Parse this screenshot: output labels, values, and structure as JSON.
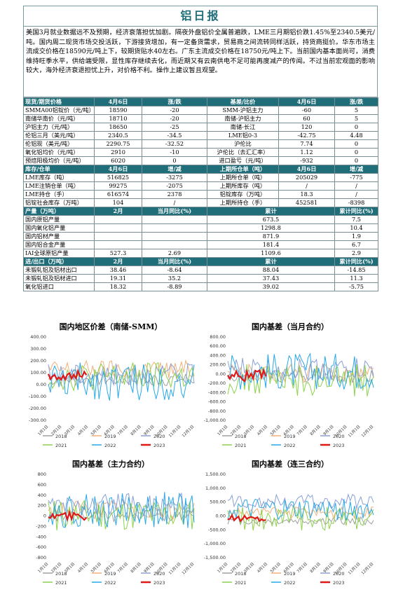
{
  "title": "铝日报",
  "summary": "美国3月就业数据远不及预期，经济衰落担忧加剧。隔夜外盘铝价全属普遍跌，LME三月期铝价跌1.45%至2340.5美元/吨。国内周二现货市场交投活跃，下游接货增加，有一定备货需求，贸易商之间流转同样活跃，持货商挺价。华东市场主流成交价格在18590元/吨上下，较期货贴水40左右。广东主流成交价格在18750元/吨上下。当前国内基本面尚可，消费维持旺季水平，供给端受限，显性库存继续去化，而近期又有云南供电不足可能再度减产的传闻。不过当前宏观面的影响较大，海外经济衰退担忧上升，对价格不利。操作上建议暂且观望。",
  "sections": [
    {
      "header": [
        "现货/期货价格",
        "4月6日",
        "涨/跌",
        "基差/比价",
        "4月6日",
        "涨/跌"
      ],
      "rows": [
        [
          "SMMA00铝锭价（元/吨）",
          "18590",
          "-20",
          "SMM-沪铝主力",
          "-60",
          "5"
        ],
        [
          "南储华南价（元/吨）",
          "18710",
          "-20",
          "南储-沪铝主力",
          "60",
          "5"
        ],
        [
          "沪铝主力（元/吨）",
          "18650",
          "-25",
          "南储-长江",
          "120",
          "0"
        ],
        [
          "伦铝三月（美元/吨）",
          "2340.5",
          "-34.5",
          "LME铝0-3",
          "-42.75",
          "4.48"
        ],
        [
          "伦铝现（美元/吨）",
          "2290.75",
          "-32.52",
          "沪伦比",
          "7.74",
          "0"
        ],
        [
          "氧化铝均价（元/吨）",
          "2910",
          "-10",
          "沪伦比（去汇汇率）",
          "1.12",
          "0"
        ],
        [
          "预焙阳极均价（元/吨）",
          "6020",
          "0",
          "进口盈亏（元/吨）",
          "-932",
          "0"
        ]
      ]
    },
    {
      "header": [
        "库存/仓单",
        "4月6日",
        "增/减",
        "上期所仓单（吨）",
        "4月6日",
        "增/减"
      ],
      "rows": [
        [
          "LME库存（吨）",
          "516825",
          "-3275",
          "上期所仓单（吨）",
          "205029",
          "-775"
        ],
        [
          "LME注销仓单（吨）",
          "99275",
          "-2075",
          "上期所库存（吨）",
          "/",
          "/"
        ],
        [
          "LME持仓（手）",
          "616574",
          "2378",
          "铝锭库存（万吨）",
          "18.3",
          "/"
        ],
        [
          "铝锭社会库存（万吨）",
          "104",
          "/",
          "上期所持仓（手）",
          "452581",
          "-8398"
        ]
      ]
    },
    {
      "header": [
        "产量（万吨）",
        "2月",
        "当月同比(%)",
        "累计",
        "累计同比(%)"
      ],
      "rows": [
        [
          "国内原铝产量",
          "",
          "",
          "673.5",
          "7.5"
        ],
        [
          "国内氧化铝产量",
          "",
          "",
          "1298.8",
          "10.4"
        ],
        [
          "国内铝材产量",
          "",
          "",
          "871.9",
          "1.9"
        ],
        [
          "国内铝合金产量",
          "",
          "",
          "181.4",
          "6.7"
        ],
        [
          "IAI全球原铝产量",
          "527.3",
          "2.69",
          "1109.6",
          "2.9"
        ]
      ]
    },
    {
      "header": [
        "进/出口（万吨）",
        "2月",
        "当月同比(%)",
        "累计",
        "累计同比(%)"
      ],
      "rows": [
        [
          "未锻轧铝及铝材出口",
          "38.46",
          "-8.64",
          "88.04",
          "-14.85"
        ],
        [
          "未锻轧铝及铝材进口",
          "19.31",
          "35.2",
          "37.43",
          "11.3"
        ],
        [
          "氧化铝进口",
          "18.32",
          "-8.89",
          "39.02",
          "-5.75"
        ]
      ]
    }
  ],
  "chart_data": [
    {
      "type": "line",
      "title": "国内地区价差（南储-SMM）",
      "yticks": [
        "400.00",
        "300.00",
        "200.00",
        "100.00",
        "0.00",
        "-100.00",
        "-200.00",
        "-300.00"
      ],
      "ylim": [
        -300,
        400
      ],
      "xticks": [
        "1月1日",
        "2月1日",
        "3月1日",
        "4月1日",
        "5月1日",
        "6月1日",
        "7月1日",
        "8月1日",
        "9月1日",
        "10月1日",
        "11月1日",
        "12月1日"
      ],
      "series": [
        {
          "name": "2018",
          "color": "#a0a0a0",
          "level": 40,
          "amp": 60
        },
        {
          "name": "2019",
          "color": "#f0b078",
          "level": 120,
          "amp": 80
        },
        {
          "name": "2020",
          "color": "#8aa0d8",
          "level": 80,
          "amp": 90
        },
        {
          "name": "2021",
          "color": "#8dd24a",
          "level": 60,
          "amp": 120
        },
        {
          "name": "2022",
          "color": "#28a8e8",
          "level": 20,
          "amp": 160
        },
        {
          "name": "2023",
          "color": "#e01818",
          "level": 70,
          "amp": 40,
          "partial": 0.27
        }
      ]
    },
    {
      "type": "line",
      "title": "国内基差（当月合约）",
      "yticks": [
        "800.00",
        "600.00",
        "400.00",
        "200.00",
        "0.00",
        "-200.00",
        "-400.00",
        "-600.00",
        "-800.00",
        "-1,000.00"
      ],
      "ylim": [
        -1000,
        800
      ],
      "xticks": [
        "1月1日",
        "2月1日",
        "3月1日",
        "4月1日",
        "5月1日",
        "6月1日",
        "7月1日",
        "8月1日",
        "9月1日",
        "10月1日",
        "11月1日",
        "12月1日"
      ],
      "series": [
        {
          "name": "2018",
          "color": "#a0a0a0",
          "level": -50,
          "amp": 150
        },
        {
          "name": "2019",
          "color": "#f0b078",
          "level": 0,
          "amp": 200
        },
        {
          "name": "2020",
          "color": "#8aa0d8",
          "level": 100,
          "amp": 250
        },
        {
          "name": "2021",
          "color": "#8dd24a",
          "level": -150,
          "amp": 350
        },
        {
          "name": "2022",
          "color": "#28a8e8",
          "level": 50,
          "amp": 400
        },
        {
          "name": "2023",
          "color": "#e01818",
          "level": -50,
          "amp": 120,
          "partial": 0.27
        }
      ]
    },
    {
      "type": "line",
      "title": "国内基差（主力合约）",
      "yticks": [
        "800",
        "600",
        "400",
        "200",
        "0",
        "-200",
        "-400",
        "-600",
        "-800"
      ],
      "ylim": [
        -800,
        800
      ],
      "xticks": [
        "1月1日",
        "2月1日",
        "3月1日",
        "4月1日",
        "5月1日",
        "6月1日",
        "7月1日",
        "8月1日",
        "9月1日",
        "10月1日",
        "11月1日",
        "12月1日"
      ],
      "series": [
        {
          "name": "2018",
          "color": "#a0a0a0",
          "level": 0,
          "amp": 120
        },
        {
          "name": "2019",
          "color": "#f0b078",
          "level": 100,
          "amp": 180
        },
        {
          "name": "2020",
          "color": "#8aa0d8",
          "level": 200,
          "amp": 220
        },
        {
          "name": "2021",
          "color": "#8dd24a",
          "level": 0,
          "amp": 300
        },
        {
          "name": "2022",
          "color": "#28a8e8",
          "level": 100,
          "amp": 350
        },
        {
          "name": "2023",
          "color": "#e01818",
          "level": -20,
          "amp": 80,
          "partial": 0.27
        }
      ]
    },
    {
      "type": "line",
      "title": "国内基差（连三合约）",
      "yticks": [
        "1,500.00",
        "1,000.00",
        "500.00",
        "0.00",
        "-500.00",
        "-1,000.00",
        "-1,500.00"
      ],
      "ylim": [
        -1500,
        1500
      ],
      "xticks": [
        "1月1日",
        "2月1日",
        "3月1日",
        "4月1日",
        "5月1日",
        "6月1日",
        "7月1日",
        "8月1日",
        "9月1日",
        "10月1日",
        "11月1日",
        "12月1日"
      ],
      "series": [
        {
          "name": "2018",
          "color": "#a0a0a0",
          "level": -200,
          "amp": 150
        },
        {
          "name": "2019",
          "color": "#f0b078",
          "level": 100,
          "amp": 200
        },
        {
          "name": "2020",
          "color": "#8aa0d8",
          "level": 500,
          "amp": 250
        },
        {
          "name": "2021",
          "color": "#8dd24a",
          "level": -100,
          "amp": 450
        },
        {
          "name": "2022",
          "color": "#28a8e8",
          "level": 200,
          "amp": 400
        },
        {
          "name": "2023",
          "color": "#e01818",
          "level": -100,
          "amp": 120,
          "partial": 0.27
        }
      ]
    }
  ]
}
